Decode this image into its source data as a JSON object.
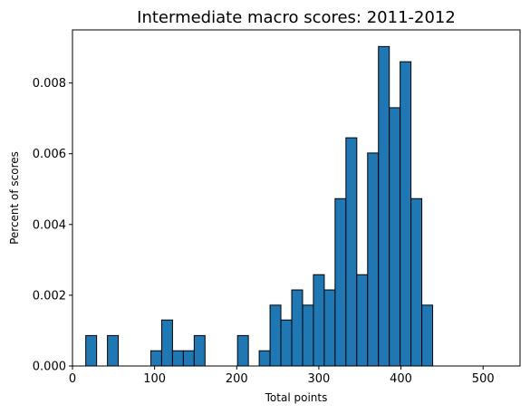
{
  "chart_data": {
    "type": "bar",
    "title": "Intermediate macro scores: 2011-2012",
    "xlabel": "Total points",
    "ylabel": "Percent of scores",
    "xlim": [
      0,
      545
    ],
    "ylim": [
      0,
      0.0095
    ],
    "x_ticks": [
      0,
      100,
      200,
      300,
      400,
      500
    ],
    "y_ticks": [
      0.0,
      0.002,
      0.004,
      0.006,
      0.008
    ],
    "y_tick_labels": [
      "0.000",
      "0.002",
      "0.004",
      "0.006",
      "0.008"
    ],
    "bar_color": "#1f77b4",
    "edge_color": "#000000",
    "grid": false,
    "bins": [
      {
        "x0": 16.2,
        "x1": 29.4,
        "value": 0.00086
      },
      {
        "x0": 29.4,
        "x1": 42.6,
        "value": 0.0
      },
      {
        "x0": 42.6,
        "x1": 55.8,
        "value": 0.00086
      },
      {
        "x0": 55.8,
        "x1": 69.0,
        "value": 0.0
      },
      {
        "x0": 69.0,
        "x1": 82.2,
        "value": 0.0
      },
      {
        "x0": 82.2,
        "x1": 95.4,
        "value": 0.0
      },
      {
        "x0": 95.4,
        "x1": 108.6,
        "value": 0.00043
      },
      {
        "x0": 108.6,
        "x1": 121.8,
        "value": 0.0013
      },
      {
        "x0": 121.8,
        "x1": 135.0,
        "value": 0.00043
      },
      {
        "x0": 135.0,
        "x1": 148.2,
        "value": 0.00043
      },
      {
        "x0": 148.2,
        "x1": 161.4,
        "value": 0.00086
      },
      {
        "x0": 161.4,
        "x1": 174.6,
        "value": 0.0
      },
      {
        "x0": 174.6,
        "x1": 187.8,
        "value": 0.0
      },
      {
        "x0": 187.8,
        "x1": 201.0,
        "value": 0.0
      },
      {
        "x0": 201.0,
        "x1": 214.2,
        "value": 0.00086
      },
      {
        "x0": 214.2,
        "x1": 227.4,
        "value": 0.0
      },
      {
        "x0": 227.4,
        "x1": 240.6,
        "value": 0.00043
      },
      {
        "x0": 240.6,
        "x1": 253.8,
        "value": 0.00172
      },
      {
        "x0": 253.8,
        "x1": 267.0,
        "value": 0.0013
      },
      {
        "x0": 267.0,
        "x1": 280.2,
        "value": 0.00215
      },
      {
        "x0": 280.2,
        "x1": 293.4,
        "value": 0.00172
      },
      {
        "x0": 293.4,
        "x1": 306.6,
        "value": 0.00258
      },
      {
        "x0": 306.6,
        "x1": 319.8,
        "value": 0.00215
      },
      {
        "x0": 319.8,
        "x1": 333.0,
        "value": 0.00473
      },
      {
        "x0": 333.0,
        "x1": 346.2,
        "value": 0.00645
      },
      {
        "x0": 346.2,
        "x1": 359.4,
        "value": 0.00258
      },
      {
        "x0": 359.4,
        "x1": 372.6,
        "value": 0.00602
      },
      {
        "x0": 372.6,
        "x1": 385.8,
        "value": 0.00903
      },
      {
        "x0": 385.8,
        "x1": 399.0,
        "value": 0.0073
      },
      {
        "x0": 399.0,
        "x1": 412.2,
        "value": 0.0086
      },
      {
        "x0": 412.2,
        "x1": 425.4,
        "value": 0.00473
      },
      {
        "x0": 425.4,
        "x1": 438.6,
        "value": 0.00172
      }
    ]
  }
}
